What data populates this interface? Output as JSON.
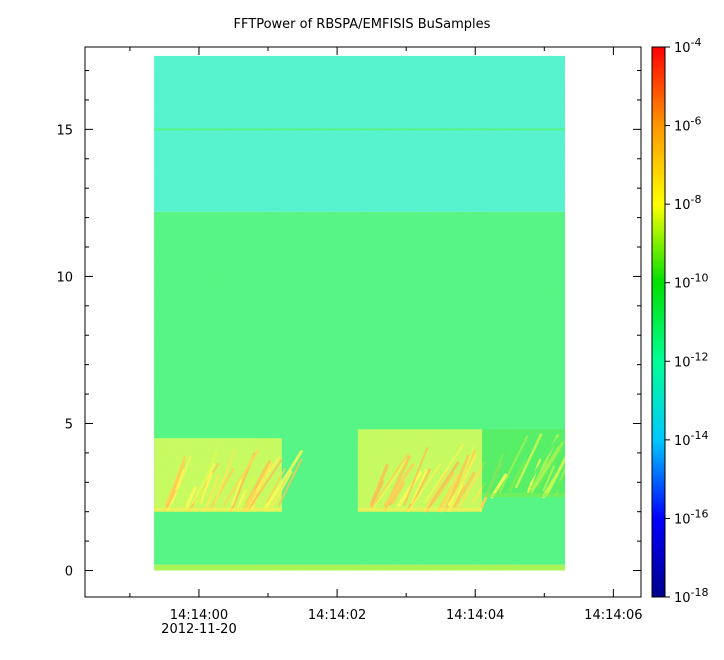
{
  "chart_data": {
    "type": "heatmap",
    "title": "FFTPower of RBSPA/EMFISIS  BuSamples",
    "xlabel": "",
    "ylabel": "",
    "x_tick_labels": [
      "14:14:00",
      "14:14:02",
      "14:14:04",
      "14:14:06"
    ],
    "x_tick_values_seconds": [
      0,
      2,
      4,
      6
    ],
    "x_date_label": "2012-11-20",
    "xlim_seconds": [
      -1.65,
      6.4
    ],
    "data_x_range_seconds": [
      -0.65,
      5.3
    ],
    "y_ticks": [
      0,
      5,
      10,
      15
    ],
    "ylim": [
      -0.9,
      17.8
    ],
    "data_y_range": [
      0,
      17.5
    ],
    "colorbar": {
      "scale": "log",
      "range": [
        1e-18,
        0.0001
      ],
      "ticks": [
        "10^-4",
        "10^-6",
        "10^-8",
        "10^-10",
        "10^-12",
        "10^-14",
        "10^-16",
        "10^-18"
      ],
      "tick_base": "10",
      "tick_exponents": [
        "-4",
        "-6",
        "-8",
        "-10",
        "-12",
        "-14",
        "-16",
        "-18"
      ],
      "colormap": "rainbow",
      "colors": [
        "#00008b",
        "#0000ff",
        "#00c8ff",
        "#00ff96",
        "#00e000",
        "#ffff00",
        "#ff9600",
        "#ff0000"
      ]
    },
    "background_levels": [
      {
        "y_from": 0,
        "y_to": 0.2,
        "level": "1e-9"
      },
      {
        "y_from": 0.2,
        "y_to": 12.2,
        "level": "1e-11"
      },
      {
        "y_from": 12.2,
        "y_to": 17.5,
        "level": "1e-12.7"
      },
      {
        "y_at": 15.0,
        "level": "1e-11",
        "note": "narrow band"
      }
    ],
    "bursts": [
      {
        "t_start_seconds": -0.65,
        "t_end_seconds": 1.2,
        "f_low": 2.0,
        "f_high": 4.5,
        "peak_level": "1e-6"
      },
      {
        "t_start_seconds": 2.3,
        "t_end_seconds": 4.1,
        "f_low": 2.0,
        "f_high": 4.8,
        "peak_level": "1e-6"
      },
      {
        "t_start_seconds": 4.1,
        "t_end_seconds": 5.3,
        "f_low": 2.5,
        "f_high": 4.8,
        "peak_level": "1e-8"
      }
    ]
  }
}
